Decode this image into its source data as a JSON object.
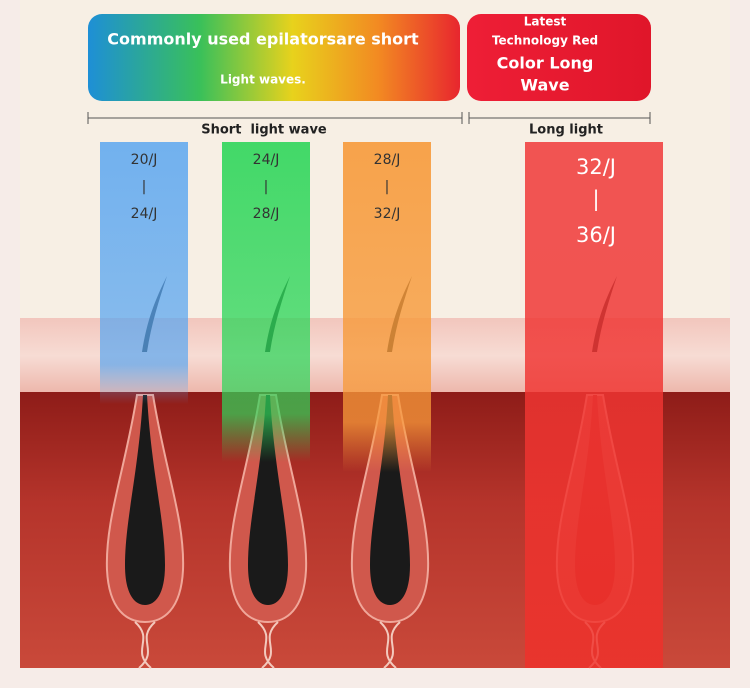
{
  "banner_short": {
    "line1": "Commonly used epilatorsare short",
    "line2": "Light waves."
  },
  "banner_long": {
    "lines": [
      "Latest",
      "Technology Red",
      "Color Long",
      "Wave"
    ]
  },
  "labels": {
    "short": "Short  light wave",
    "long": "Long light"
  },
  "columns": [
    {
      "from": "20/J",
      "separator": "|",
      "to": "24/J"
    },
    {
      "from": "24/J",
      "separator": "|",
      "to": "28/J"
    },
    {
      "from": "28/J",
      "separator": "|",
      "to": "32/J"
    },
    {
      "from": "32/J",
      "separator": "|",
      "to": "36/J"
    }
  ]
}
